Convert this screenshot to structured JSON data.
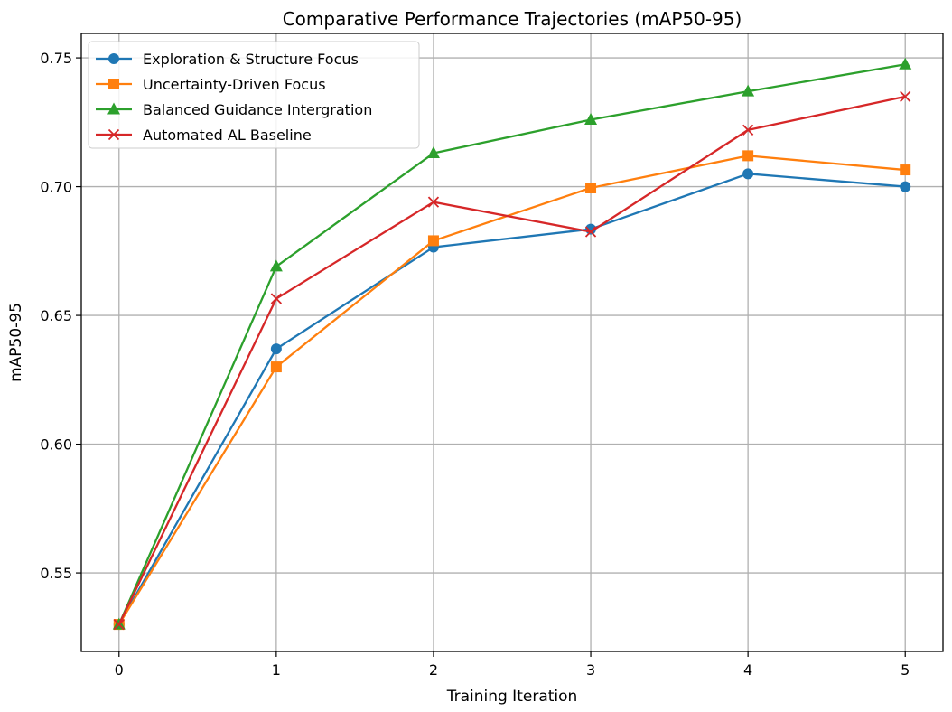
{
  "chart_data": {
    "type": "line",
    "title": "Comparative Performance Trajectories (mAP50-95)",
    "xlabel": "Training Iteration",
    "ylabel": "mAP50-95",
    "x": [
      0,
      1,
      2,
      3,
      4,
      5
    ],
    "xticks": [
      "0",
      "1",
      "2",
      "3",
      "4",
      "5"
    ],
    "yticks": [
      "0.55",
      "0.60",
      "0.65",
      "0.70",
      "0.75"
    ],
    "ytick_values": [
      0.55,
      0.6,
      0.65,
      0.7,
      0.75
    ],
    "xlim": [
      -0.24,
      5.24
    ],
    "ylim": [
      0.5195,
      0.7595
    ],
    "grid": true,
    "legend_position": "top-left",
    "series": [
      {
        "name": "Exploration & Structure Focus",
        "color": "#1f77b4",
        "marker": "circle",
        "values": [
          0.53,
          0.637,
          0.6765,
          0.6835,
          0.705,
          0.7
        ]
      },
      {
        "name": "Uncertainty-Driven Focus",
        "color": "#ff7f0e",
        "marker": "square",
        "values": [
          0.53,
          0.63,
          0.679,
          0.6995,
          0.712,
          0.7065
        ]
      },
      {
        "name": "Balanced Guidance Intergration",
        "color": "#2ca02c",
        "marker": "triangle",
        "values": [
          0.53,
          0.669,
          0.713,
          0.726,
          0.737,
          0.7475
        ]
      },
      {
        "name": "Automated AL Baseline",
        "color": "#d62728",
        "marker": "x",
        "values": [
          0.53,
          0.6565,
          0.694,
          0.6825,
          0.722,
          0.735
        ]
      }
    ]
  }
}
